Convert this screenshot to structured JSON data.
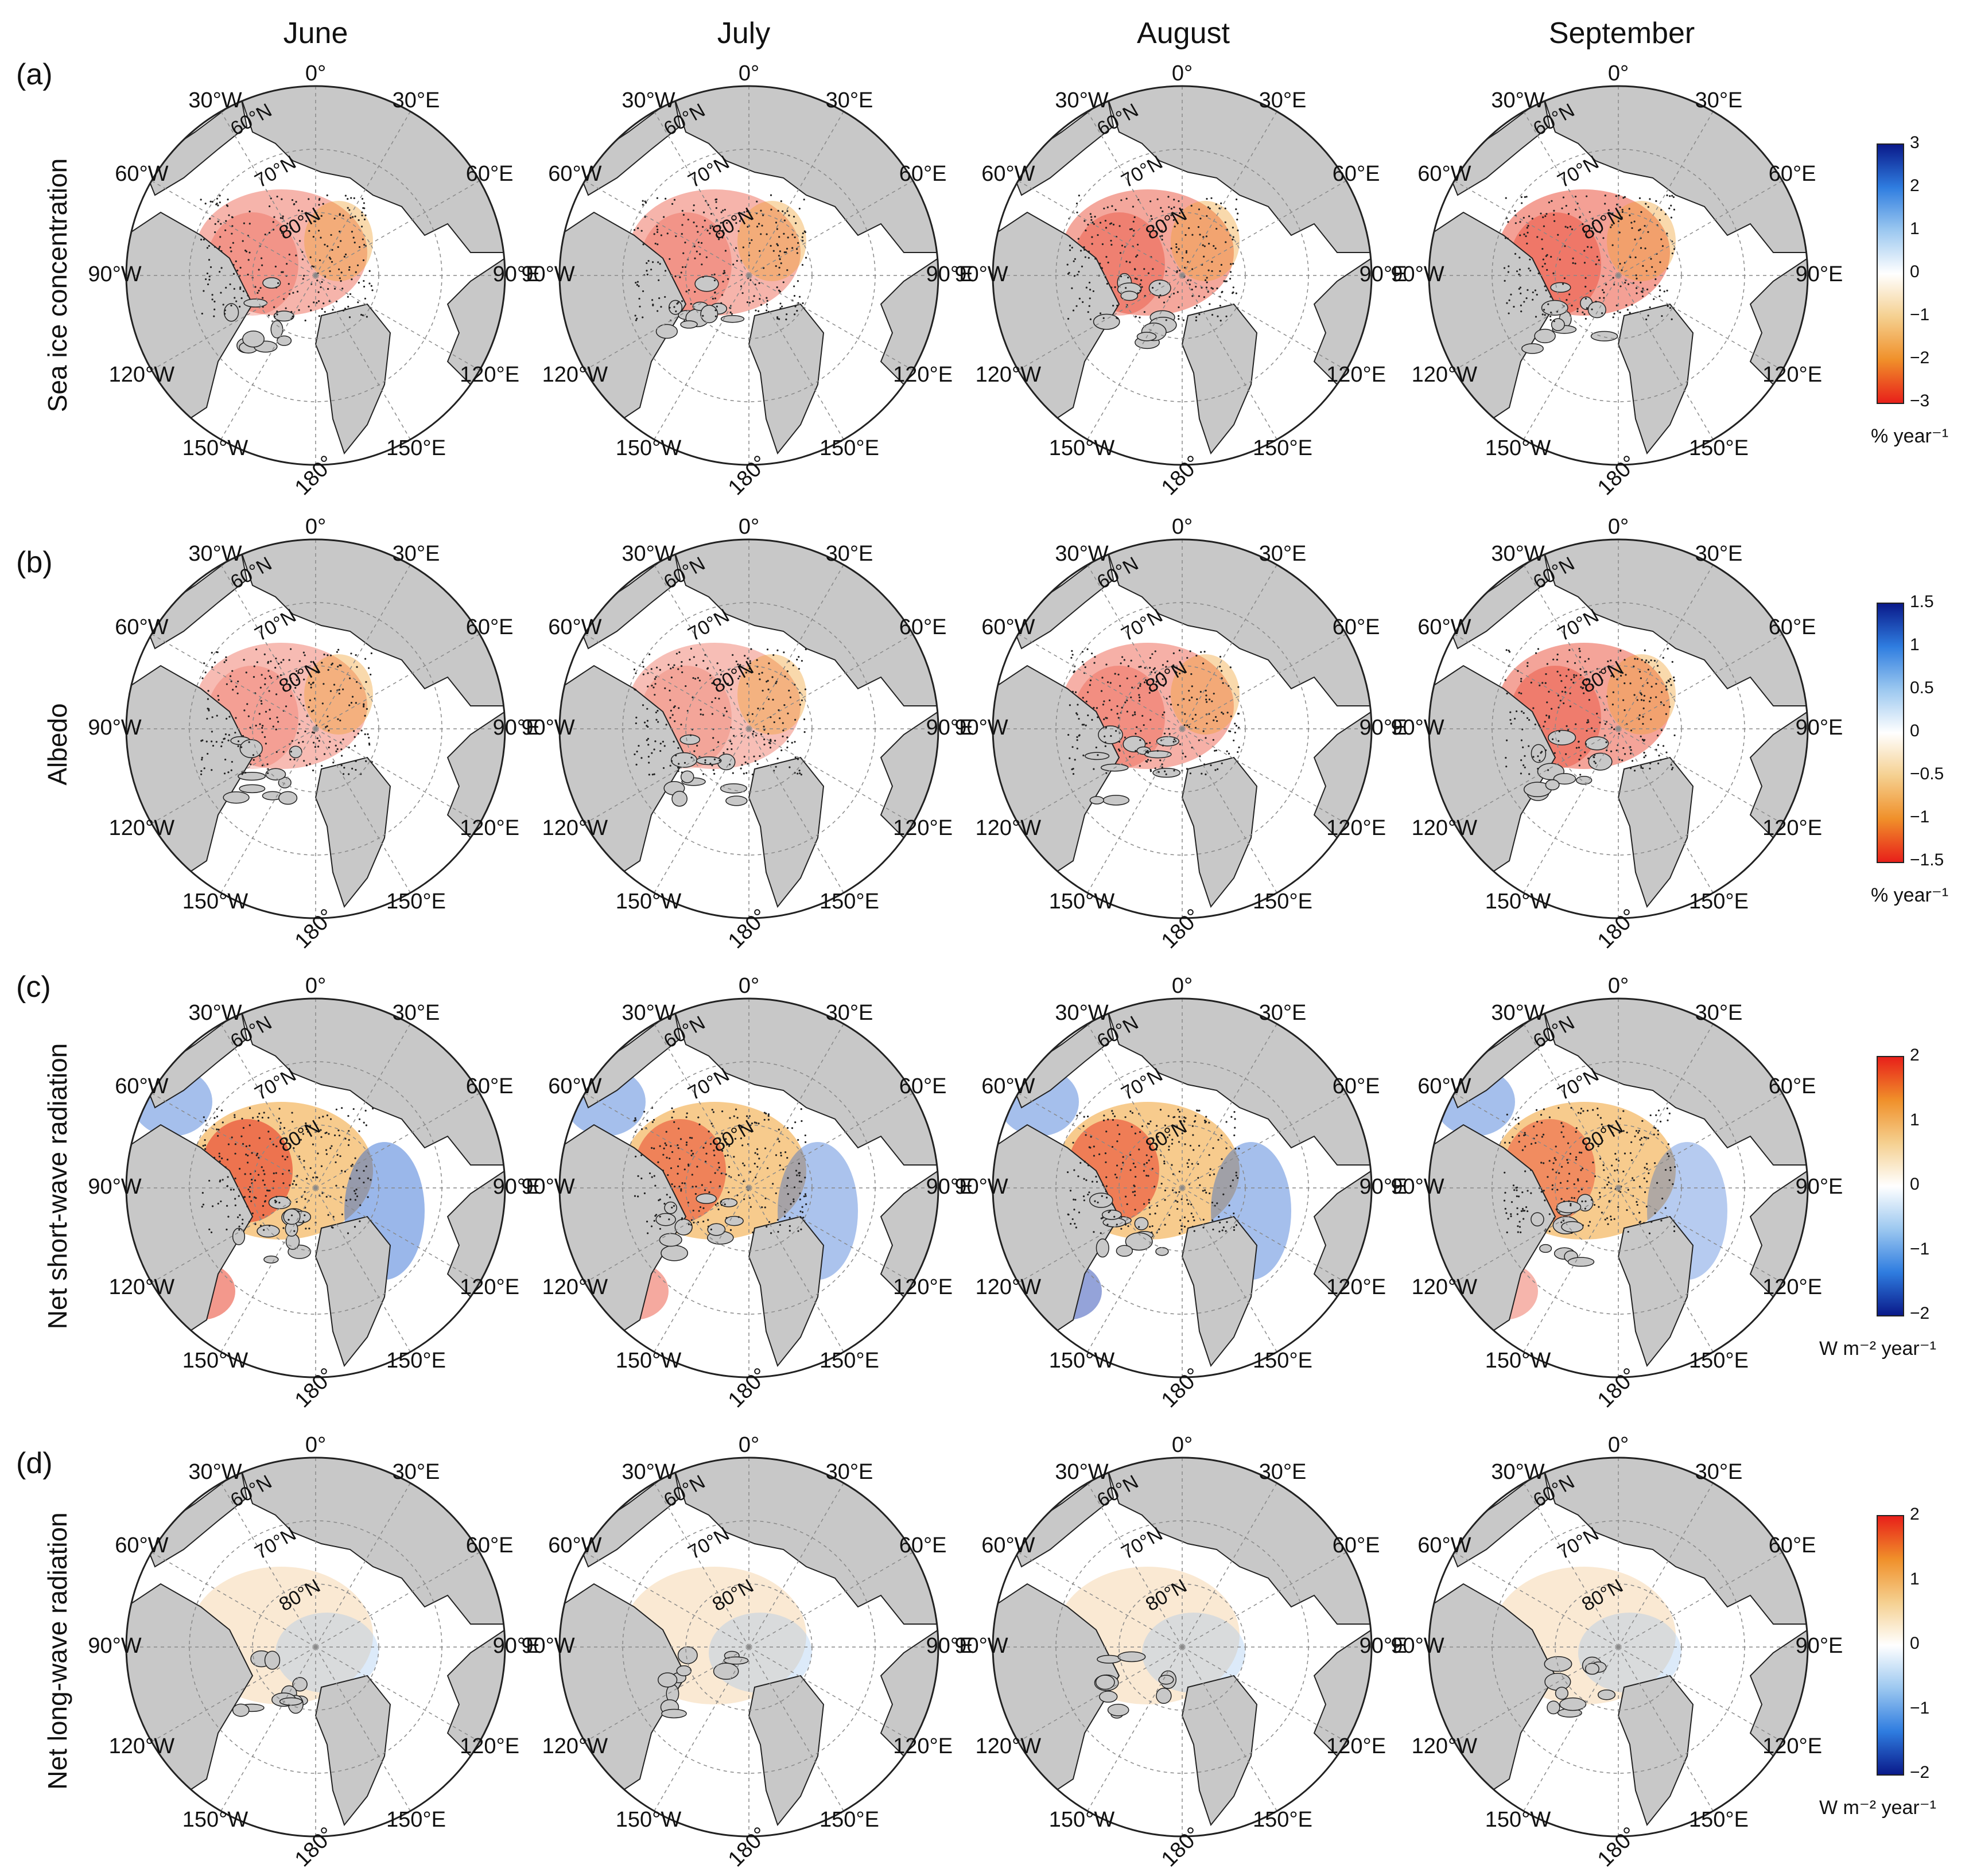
{
  "columns": [
    "June",
    "July",
    "August",
    "September"
  ],
  "rows": [
    {
      "letter": "(a)",
      "variable": "Sea ice concentration",
      "colorbar": {
        "ticks": [
          "3",
          "2",
          "1",
          "0",
          "−1",
          "−2",
          "−3"
        ],
        "unit": "% year⁻¹",
        "scheme": "diverging-blue-top"
      },
      "colors": {
        "positive": "#1f5fd0",
        "negative": "#e8402a"
      }
    },
    {
      "letter": "(b)",
      "variable": "Albedo",
      "colorbar": {
        "ticks": [
          "1.5",
          "1",
          "0.5",
          "0",
          "−0.5",
          "−1",
          "−1.5"
        ],
        "unit": "% year⁻¹",
        "scheme": "diverging-blue-top"
      },
      "colors": {
        "positive": "#1f5fd0",
        "negative": "#e8402a"
      }
    },
    {
      "letter": "(c)",
      "variable": "Net short-wave radiation",
      "colorbar": {
        "ticks": [
          "2",
          "1",
          "0",
          "−1",
          "−2"
        ],
        "unit": "W m⁻² year⁻¹",
        "scheme": "diverging-red-top"
      },
      "colors": {
        "positive": "#e8402a",
        "negative": "#1f5fd0"
      }
    },
    {
      "letter": "(d)",
      "variable": "Net long-wave radiation",
      "colorbar": {
        "ticks": [
          "2",
          "1",
          "0",
          "−1",
          "−2"
        ],
        "unit": "W m⁻² year⁻¹",
        "scheme": "diverging-red-top"
      },
      "colors": {
        "positive": "#e8402a",
        "negative": "#1f5fd0"
      }
    }
  ],
  "map": {
    "projection": "north polar stereographic",
    "longitude_labels": [
      "150°E",
      "120°E",
      "90°E",
      "60°E",
      "30°E",
      "0°",
      "30°W",
      "60°W",
      "90°W",
      "120°W",
      "150°W",
      "180°"
    ],
    "latitude_labels": [
      "60°N",
      "70°N",
      "80°N"
    ],
    "land_color": "#c8c8c8",
    "ocean_color": "#ffffff"
  },
  "panel_intensity": [
    [
      0.55,
      0.55,
      0.75,
      0.85
    ],
    [
      0.45,
      0.4,
      0.6,
      0.8
    ],
    [
      0.9,
      0.75,
      0.8,
      0.65
    ],
    [
      0.15,
      0.15,
      0.15,
      0.12
    ]
  ]
}
